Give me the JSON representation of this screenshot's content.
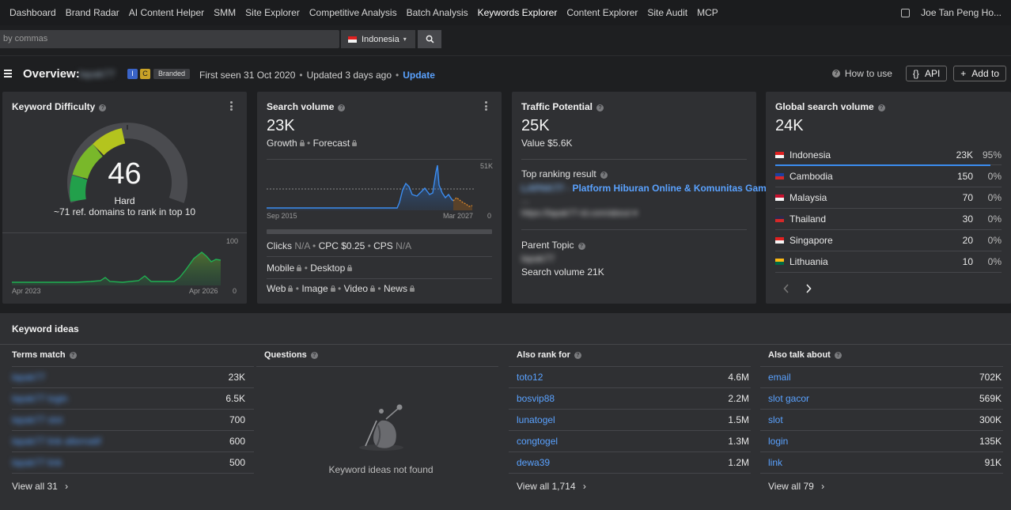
{
  "nav": {
    "links": [
      "Dashboard",
      "Brand Radar",
      "AI Content Helper",
      "SMM",
      "Site Explorer",
      "Competitive Analysis",
      "Batch Analysis",
      "Keywords Explorer",
      "Content Explorer",
      "Site Audit",
      "MCP"
    ],
    "active": "Keywords Explorer",
    "user": "Joe Tan Peng Ho..."
  },
  "search": {
    "placeholder": "by commas",
    "country": "Indonesia"
  },
  "overview": {
    "title": "Overview:",
    "keyword": "lapak77",
    "tag_i": "I",
    "tag_c": "C",
    "tag_branded": "Branded",
    "first_seen": "First seen 31 Oct 2020",
    "updated": "Updated 3 days ago",
    "update_link": "Update",
    "how_to_use": "How to use",
    "api_label": "API",
    "add_to_label": "Add to"
  },
  "kd_card": {
    "title": "Keyword Difficulty",
    "score": "46",
    "label": "Hard",
    "subtitle": "~71 ref. domains to rank in top 10",
    "chart_max": "100",
    "chart_min": "0",
    "x_start": "Apr 2023",
    "x_end": "Apr 2026"
  },
  "sv_card": {
    "title": "Search volume",
    "value": "23K",
    "growth": "Growth",
    "forecast": "Forecast",
    "chart_max": "51K",
    "chart_min": "0",
    "x_start": "Sep 2015",
    "x_end": "Mar 2027",
    "clicks_label": "Clicks",
    "clicks_value": "N/A",
    "cpc": "CPC $0.25",
    "cps_label": "CPS",
    "cps_value": "N/A",
    "mobile": "Mobile",
    "desktop": "Desktop",
    "web": "Web",
    "image": "Image",
    "video": "Video",
    "news": "News"
  },
  "tp_card": {
    "title": "Traffic Potential",
    "value": "25K",
    "value_line": "Value $5.6K",
    "top_ranking": "Top ranking result",
    "result_title_blur": "LAPAK77 -",
    "result_title": "Platform Hiburan Online & Komunitas Game",
    "result_title_2": "...",
    "result_url": "https://lapak77-id.com/about ▾",
    "parent_topic": "Parent Topic",
    "parent_kw": "lapak77",
    "parent_sv": "Search volume 21K"
  },
  "gsv_card": {
    "title": "Global search volume",
    "value": "24K",
    "countries": [
      {
        "name": "Indonesia",
        "value": "23K",
        "pct": "95%",
        "flag": [
          "#e02020",
          "#f4f4f4"
        ]
      },
      {
        "name": "Cambodia",
        "value": "150",
        "pct": "0%",
        "flag": [
          "#1e3f9e",
          "#d62828"
        ]
      },
      {
        "name": "Malaysia",
        "value": "70",
        "pct": "0%",
        "flag": [
          "#c8102e",
          "#f4f4f4"
        ]
      },
      {
        "name": "Thailand",
        "value": "30",
        "pct": "0%",
        "flag": [
          "#2d2a4a",
          "#d62828"
        ]
      },
      {
        "name": "Singapore",
        "value": "20",
        "pct": "0%",
        "flag": [
          "#e02020",
          "#f4f4f4"
        ]
      },
      {
        "name": "Lithuania",
        "value": "10",
        "pct": "0%",
        "flag": [
          "#fdb913",
          "#006a44"
        ]
      }
    ]
  },
  "ideas": {
    "title": "Keyword ideas",
    "terms_match": {
      "title": "Terms match",
      "rows": [
        {
          "kw": "lapak77",
          "v": "23K"
        },
        {
          "kw": "lapak77 login",
          "v": "6.5K"
        },
        {
          "kw": "lapak77 slot",
          "v": "700"
        },
        {
          "kw": "lapak77 link alternatif",
          "v": "600"
        },
        {
          "kw": "lapak77 link",
          "v": "500"
        }
      ],
      "view_all": "View all 31"
    },
    "questions": {
      "title": "Questions",
      "empty": "Keyword ideas not found"
    },
    "also_rank": {
      "title": "Also rank for",
      "rows": [
        {
          "kw": "toto12",
          "v": "4.6M"
        },
        {
          "kw": "bosvip88",
          "v": "2.2M"
        },
        {
          "kw": "lunatogel",
          "v": "1.5M"
        },
        {
          "kw": "congtogel",
          "v": "1.3M"
        },
        {
          "kw": "dewa39",
          "v": "1.2M"
        }
      ],
      "view_all": "View all 1,714"
    },
    "also_talk": {
      "title": "Also talk about",
      "rows": [
        {
          "kw": "email",
          "v": "702K"
        },
        {
          "kw": "slot gacor",
          "v": "569K"
        },
        {
          "kw": "slot",
          "v": "300K"
        },
        {
          "kw": "login",
          "v": "135K"
        },
        {
          "kw": "link",
          "v": "91K"
        }
      ],
      "view_all": "View all 79"
    }
  },
  "colors": {
    "accent": "#5aa2ff",
    "url_green": "#2ea043",
    "card_bg": "#2f3033",
    "page_bg": "#1e1f21"
  }
}
